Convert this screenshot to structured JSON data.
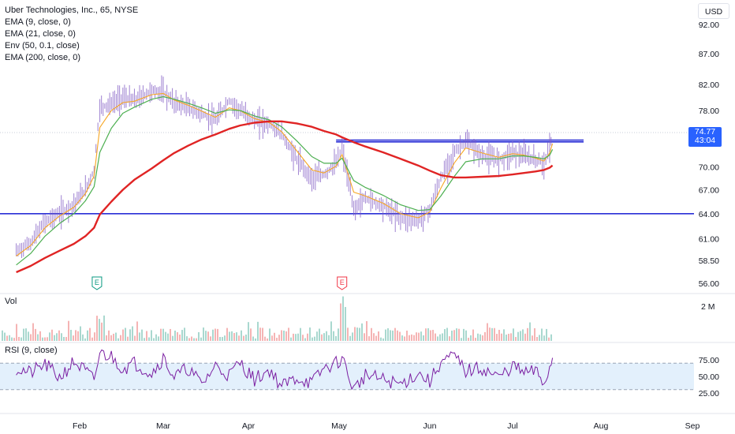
{
  "header": {
    "symbol_line": "Uber Technologies, Inc., 65, NYSE",
    "indicators": [
      "EMA (9, close, 0)",
      "EMA (21, close, 0)",
      "Env (50, 0.1, close)",
      "EMA (200, close, 0)"
    ],
    "currency_button": "USD"
  },
  "price_tag": {
    "price": "74.77",
    "countdown": "43:04"
  },
  "panes": {
    "volume_title": "Vol",
    "volume_scale_label": "2 M",
    "rsi_title": "RSI (9, close)"
  },
  "earnings_markers": [
    {
      "label": "E",
      "date": "Feb 7",
      "color": "#089981"
    },
    {
      "label": "E",
      "date": "May 2",
      "color": "#f23645"
    }
  ],
  "colors": {
    "candles": "#7e57c2",
    "ema9": "#f6a623",
    "ema21": "#4caf50",
    "ema200": "#e02424",
    "hlines": "#2a2fd6",
    "rsi_line": "#7b1fa2",
    "rsi_band": "#e3f0fc",
    "volume_up": "#a9d8cf",
    "volume_down": "#f5b4b4",
    "price_tag": "#2962ff"
  },
  "chart_data": [
    {
      "type": "line",
      "title": "Uber Technologies, Inc., 65, NYSE",
      "x": [
        "Jan 10",
        "Jan 15",
        "Jan 20",
        "Jan 25",
        "Jan 30",
        "Feb 3",
        "Feb 6",
        "Feb 8",
        "Feb 12",
        "Feb 16",
        "Feb 20",
        "Feb 26",
        "Mar 1",
        "Mar 5",
        "Mar 10",
        "Mar 15",
        "Mar 20",
        "Mar 25",
        "Mar 29",
        "Apr 3",
        "Apr 8",
        "Apr 12",
        "Apr 17",
        "Apr 22",
        "Apr 26",
        "Apr 30",
        "May 2",
        "May 6",
        "May 10",
        "May 16",
        "May 22",
        "May 28",
        "Jun 1",
        "Jun 5",
        "Jun 10",
        "Jun 14",
        "Jun 20",
        "Jun 26",
        "Jul 1",
        "Jul 5",
        "Jul 9",
        "Jul 12",
        "Jul 14",
        "Jul 15"
      ],
      "x_ticks": [
        "Feb",
        "Mar",
        "Apr",
        "May",
        "Jun",
        "Jul",
        "Aug",
        "Sep"
      ],
      "y_ticks": [
        92.0,
        87.0,
        82.0,
        78.0,
        74.0,
        70.0,
        67.0,
        64.0,
        61.0,
        58.5,
        56.0
      ],
      "ylim": [
        55.7,
        94.0
      ],
      "y_scale": "log",
      "series": [
        {
          "name": "Price",
          "values": [
            59.5,
            60.5,
            63.0,
            64.0,
            65.2,
            67.0,
            69.5,
            78.5,
            79.0,
            80.0,
            79.5,
            81.0,
            80.8,
            79.2,
            78.5,
            77.5,
            76.5,
            79.5,
            78.0,
            76.5,
            76.0,
            74.5,
            71.0,
            68.5,
            69.0,
            70.5,
            72.5,
            64.5,
            66.0,
            65.0,
            63.5,
            63.2,
            64.5,
            68.5,
            72.0,
            73.5,
            71.5,
            71.0,
            72.0,
            71.5,
            71.0,
            70.5,
            72.5,
            74.77
          ]
        },
        {
          "name": "EMA (9, close, 0)",
          "values": [
            59.0,
            60.2,
            62.3,
            63.7,
            64.8,
            66.5,
            68.8,
            75.5,
            78.0,
            79.2,
            79.4,
            80.4,
            80.6,
            79.6,
            78.8,
            77.9,
            77.0,
            78.4,
            78.0,
            76.8,
            76.2,
            74.9,
            72.2,
            69.6,
            69.2,
            70.1,
            71.7,
            66.7,
            66.2,
            65.3,
            64.0,
            63.5,
            64.2,
            67.2,
            70.6,
            72.6,
            71.9,
            71.3,
            71.8,
            71.6,
            71.2,
            70.8,
            71.9,
            73.2
          ]
        },
        {
          "name": "EMA (21, close, 0)",
          "values": [
            58.0,
            59.3,
            61.3,
            62.8,
            64.0,
            65.6,
            67.4,
            72.0,
            75.4,
            77.6,
            78.5,
            79.7,
            80.1,
            79.7,
            79.1,
            78.4,
            77.6,
            78.1,
            78.0,
            77.2,
            76.6,
            75.6,
            73.6,
            71.4,
            70.5,
            70.5,
            71.2,
            68.2,
            67.3,
            66.3,
            65.1,
            64.4,
            64.5,
            66.2,
            68.8,
            70.7,
            71.1,
            71.1,
            71.5,
            71.5,
            71.3,
            71.1,
            71.6,
            72.4
          ]
        },
        {
          "name": "EMA (200, close, 0)",
          "values": [
            57.2,
            57.9,
            58.8,
            59.6,
            60.4,
            61.3,
            62.3,
            63.9,
            65.5,
            67.0,
            68.3,
            69.8,
            70.9,
            71.9,
            72.9,
            73.8,
            74.5,
            75.3,
            75.8,
            76.2,
            76.4,
            76.4,
            76.1,
            75.6,
            75.0,
            74.5,
            74.1,
            73.4,
            72.8,
            72.0,
            71.1,
            70.2,
            69.5,
            68.9,
            68.6,
            68.6,
            68.7,
            68.8,
            69.0,
            69.2,
            69.4,
            69.6,
            69.9,
            70.2
          ]
        }
      ],
      "horizontal_lines": [
        73.7,
        73.45,
        64.0
      ],
      "last_price": 74.77
    },
    {
      "type": "bar",
      "title": "Vol",
      "y_ticks": [
        "2 M"
      ],
      "note": "daily volume bars spanning Jan 10 – Jul 15; spikes near Feb 8 and May 2 earnings"
    },
    {
      "type": "line",
      "title": "RSI (9, close)",
      "y_ticks": [
        75.0,
        50.0,
        25.0
      ],
      "band": [
        30,
        70
      ],
      "series": [
        {
          "name": "RSI",
          "values": [
            62,
            55,
            68,
            48,
            72,
            58,
            44,
            85,
            80,
            62,
            70,
            55,
            78,
            49,
            62,
            38,
            66,
            52,
            71,
            45,
            60,
            35,
            48,
            40,
            62,
            70,
            78,
            30,
            52,
            45,
            38,
            55,
            42,
            72,
            80,
            58,
            62,
            48,
            66,
            55,
            58,
            40,
            62,
            78
          ]
        }
      ]
    }
  ]
}
